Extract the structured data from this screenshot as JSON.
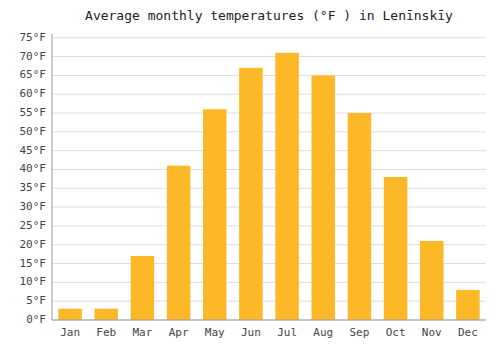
{
  "chart_data": {
    "type": "bar",
    "title": "Average monthly temperatures (°F ) in Lenīnskīy",
    "categories": [
      "Jan",
      "Feb",
      "Mar",
      "Apr",
      "May",
      "Jun",
      "Jul",
      "Aug",
      "Sep",
      "Oct",
      "Nov",
      "Dec"
    ],
    "values": [
      3,
      3,
      17,
      41,
      56,
      67,
      71,
      65,
      55,
      38,
      21,
      8
    ],
    "color": "#FDB827",
    "ylim": [
      0,
      76
    ],
    "yticks": [
      {
        "value": 0,
        "label": "0°F"
      },
      {
        "value": 5,
        "label": "5°F"
      },
      {
        "value": 10,
        "label": "10°F"
      },
      {
        "value": 15,
        "label": "15°F"
      },
      {
        "value": 20,
        "label": "20°F"
      },
      {
        "value": 25,
        "label": "25°F"
      },
      {
        "value": 30,
        "label": "30°F"
      },
      {
        "value": 35,
        "label": "35°F"
      },
      {
        "value": 40,
        "label": "40°F"
      },
      {
        "value": 45,
        "label": "45°F"
      },
      {
        "value": 50,
        "label": "50°F"
      },
      {
        "value": 55,
        "label": "55°F"
      },
      {
        "value": 60,
        "label": "60°F"
      },
      {
        "value": 65,
        "label": "65°F"
      },
      {
        "value": 70,
        "label": "70°F"
      },
      {
        "value": 75,
        "label": "75°F"
      }
    ],
    "grid": true
  }
}
